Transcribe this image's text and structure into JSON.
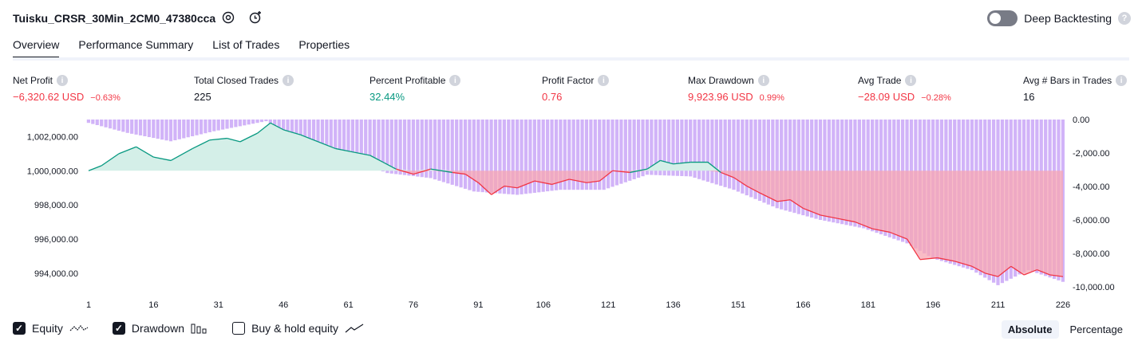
{
  "header": {
    "title": "Tuisku_CRSR_30Min_2CM0_47380cca",
    "deep_backtesting_label": "Deep Backtesting"
  },
  "tabs": [
    {
      "label": "Overview",
      "active": true
    },
    {
      "label": "Performance Summary",
      "active": false
    },
    {
      "label": "List of Trades",
      "active": false
    },
    {
      "label": "Properties",
      "active": false
    }
  ],
  "metrics": {
    "net_profit": {
      "label": "Net Profit",
      "value": "−6,320.62 USD",
      "sub": "−0.63%"
    },
    "total_closed_trades": {
      "label": "Total Closed Trades",
      "value": "225"
    },
    "percent_profitable": {
      "label": "Percent Profitable",
      "value": "32.44%"
    },
    "profit_factor": {
      "label": "Profit Factor",
      "value": "0.76"
    },
    "max_drawdown": {
      "label": "Max Drawdown",
      "value": "9,923.96 USD",
      "sub": "0.99%"
    },
    "avg_trade": {
      "label": "Avg Trade",
      "value": "−28.09 USD",
      "sub": "−0.28%"
    },
    "avg_bars": {
      "label": "Avg # Bars in Trades",
      "value": "16"
    }
  },
  "legend": {
    "equity": {
      "label": "Equity",
      "checked": true
    },
    "drawdown": {
      "label": "Drawdown",
      "checked": true
    },
    "buy_hold": {
      "label": "Buy & hold equity",
      "checked": false
    }
  },
  "modes": {
    "absolute": "Absolute",
    "percentage": "Percentage",
    "active": "absolute"
  },
  "colors": {
    "equity_up": "#089981",
    "equity_down": "#f23645",
    "drawdown_bar": "#c9a6f7",
    "fill_up": "#d4efe8",
    "fill_down": "#f7a6b3"
  },
  "chart_data": {
    "type": "area",
    "x_ticks": [
      "1",
      "16",
      "31",
      "46",
      "61",
      "76",
      "91",
      "106",
      "121",
      "136",
      "151",
      "166",
      "181",
      "196",
      "211",
      "226"
    ],
    "left_axis_ticks": [
      "1,002,000.00",
      "1,000,000.00",
      "998,000.00",
      "996,000.00",
      "994,000.00"
    ],
    "right_axis_ticks": [
      "0.00",
      "-2,000.00",
      "-4,000.00",
      "-6,000.00",
      "-8,000.00",
      "-10,000.00"
    ],
    "left_ylim": [
      993200,
      1003000
    ],
    "right_ylim": [
      -10000,
      0
    ],
    "baseline": 1000000,
    "equity_points": [
      [
        1,
        1000000
      ],
      [
        4,
        1000300
      ],
      [
        8,
        1001000
      ],
      [
        12,
        1001400
      ],
      [
        16,
        1000800
      ],
      [
        20,
        1000600
      ],
      [
        25,
        1001300
      ],
      [
        29,
        1001800
      ],
      [
        33,
        1001900
      ],
      [
        36,
        1001700
      ],
      [
        40,
        1002200
      ],
      [
        43,
        1002800
      ],
      [
        46,
        1002400
      ],
      [
        50,
        1002100
      ],
      [
        54,
        1001700
      ],
      [
        58,
        1001300
      ],
      [
        62,
        1001100
      ],
      [
        66,
        1000900
      ],
      [
        69,
        1000500
      ],
      [
        72,
        1000100
      ],
      [
        76,
        999800
      ],
      [
        80,
        1000100
      ],
      [
        85,
        999900
      ],
      [
        88,
        999800
      ],
      [
        91,
        999300
      ],
      [
        94,
        998600
      ],
      [
        97,
        999100
      ],
      [
        100,
        999000
      ],
      [
        104,
        999400
      ],
      [
        108,
        999200
      ],
      [
        112,
        999500
      ],
      [
        116,
        999300
      ],
      [
        119,
        999400
      ],
      [
        122,
        1000000
      ],
      [
        126,
        999900
      ],
      [
        130,
        1000100
      ],
      [
        133,
        1000600
      ],
      [
        136,
        1000400
      ],
      [
        140,
        1000500
      ],
      [
        144,
        1000500
      ],
      [
        147,
        999900
      ],
      [
        150,
        999600
      ],
      [
        153,
        999100
      ],
      [
        156,
        998700
      ],
      [
        160,
        998200
      ],
      [
        163,
        998300
      ],
      [
        166,
        997800
      ],
      [
        170,
        997400
      ],
      [
        174,
        997200
      ],
      [
        178,
        997000
      ],
      [
        182,
        996600
      ],
      [
        186,
        996400
      ],
      [
        190,
        996000
      ],
      [
        193,
        994800
      ],
      [
        197,
        994900
      ],
      [
        201,
        994700
      ],
      [
        205,
        994400
      ],
      [
        208,
        994000
      ],
      [
        211,
        993800
      ],
      [
        214,
        994400
      ],
      [
        217,
        993900
      ],
      [
        220,
        994200
      ],
      [
        223,
        993900
      ],
      [
        226,
        993800
      ]
    ],
    "drawdown_profile": [
      [
        1,
        -200
      ],
      [
        10,
        -800
      ],
      [
        20,
        -1300
      ],
      [
        30,
        -700
      ],
      [
        42,
        -100
      ],
      [
        50,
        -1200
      ],
      [
        60,
        -2200
      ],
      [
        70,
        -3200
      ],
      [
        80,
        -3500
      ],
      [
        90,
        -4300
      ],
      [
        100,
        -4500
      ],
      [
        110,
        -4200
      ],
      [
        120,
        -4200
      ],
      [
        130,
        -3300
      ],
      [
        140,
        -3400
      ],
      [
        150,
        -4200
      ],
      [
        160,
        -5300
      ],
      [
        170,
        -6000
      ],
      [
        180,
        -6500
      ],
      [
        190,
        -7400
      ],
      [
        196,
        -8300
      ],
      [
        205,
        -9000
      ],
      [
        211,
        -9900
      ],
      [
        218,
        -9000
      ],
      [
        226,
        -9700
      ]
    ]
  }
}
